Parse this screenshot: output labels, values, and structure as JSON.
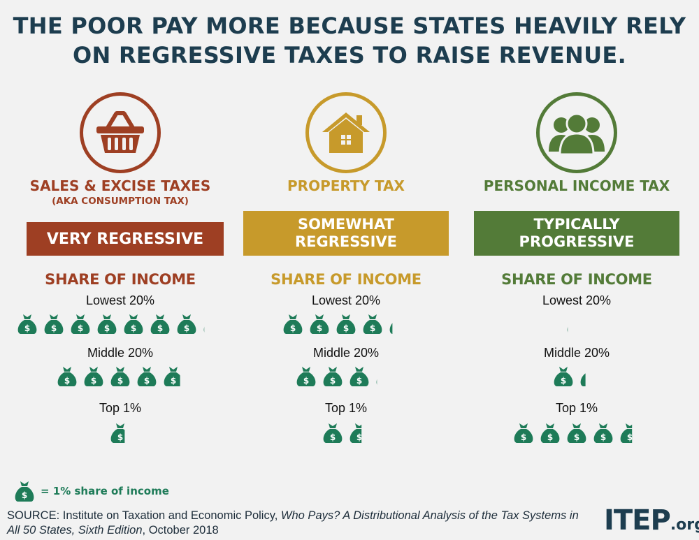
{
  "title": {
    "line1": "THE POOR PAY MORE BECAUSE STATES HEAVILY RELY",
    "line2": "ON REGRESSIVE TAXES TO RAISE REVENUE."
  },
  "colors": {
    "title": "#1d3d4f",
    "sales": "#9e3f23",
    "property": "#c79a2b",
    "income": "#537b38",
    "bag": "#1e7b58"
  },
  "columns": [
    {
      "icon": "shopping-basket-icon",
      "name": "SALES & EXCISE TAXES",
      "subtitle": "(AKA CONSUMPTION TAX)",
      "banner_line1": "VERY REGRESSIVE",
      "banner_line2": "",
      "share_heading": "SHARE OF INCOME",
      "groups": [
        {
          "label": "Lowest 20%"
        },
        {
          "label": "Middle 20%"
        },
        {
          "label": "Top 1%"
        }
      ]
    },
    {
      "icon": "house-icon",
      "name": "PROPERTY TAX",
      "subtitle": "",
      "banner_line1": "SOMEWHAT",
      "banner_line2": "REGRESSIVE",
      "share_heading": "SHARE OF INCOME",
      "groups": [
        {
          "label": "Lowest 20%"
        },
        {
          "label": "Middle 20%"
        },
        {
          "label": "Top 1%"
        }
      ]
    },
    {
      "icon": "people-icon",
      "name": "PERSONAL INCOME TAX",
      "subtitle": "",
      "banner_line1": "TYPICALLY",
      "banner_line2": "PROGRESSIVE",
      "share_heading": "SHARE OF INCOME",
      "groups": [
        {
          "label": "Lowest 20%"
        },
        {
          "label": "Middle 20%"
        },
        {
          "label": "Top 1%"
        }
      ]
    }
  ],
  "chart_data": {
    "type": "pictograph",
    "unit": "= 1% share of income",
    "categories": [
      "Lowest 20%",
      "Middle 20%",
      "Top 1%"
    ],
    "series": [
      {
        "name": "SALES & EXCISE TAXES",
        "values": [
          7.1,
          4.8,
          0.7
        ]
      },
      {
        "name": "PROPERTY TAX",
        "values": [
          4.2,
          3.1,
          1.6
        ]
      },
      {
        "name": "PERSONAL INCOME TAX",
        "values": [
          0.1,
          1.3,
          4.6
        ]
      }
    ]
  },
  "legend": {
    "icon": "money-bag-icon",
    "label": "= 1% share of income"
  },
  "source": {
    "prefix": "SOURCE: Institute on Taxation and Economic Policy, ",
    "title": "Who Pays? A Distributional Analysis of the Tax Systems in All 50 States, Sixth Edition",
    "suffix": ", October 2018"
  },
  "logo": {
    "big": "ITEP",
    "small": ".org"
  }
}
